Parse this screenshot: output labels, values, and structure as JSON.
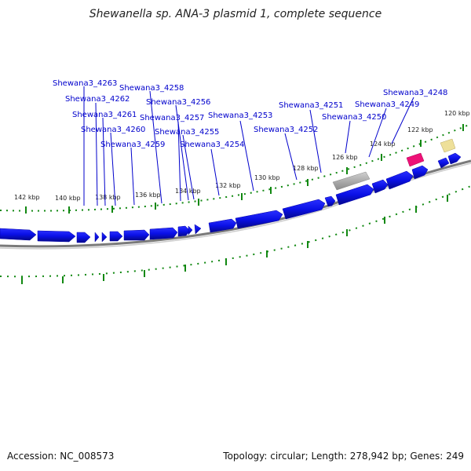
{
  "title": "Shewanella sp. ANA-3 plasmid 1, complete sequence",
  "footer": {
    "accession": "Accession: NC_008573",
    "summary": "Topology: circular; Length: 278,942 bp; Genes: 249"
  },
  "colors": {
    "gene": "#0a10e6",
    "gene_label": "#0000cc",
    "backbone": "#777777",
    "tick": "#118811",
    "grey_feature": "#aaaaaa",
    "pink_feature": "#ee1177",
    "yellow_feature": "#eee09a"
  },
  "ticks": [
    {
      "label": "142 kbp",
      "kbp": 142
    },
    {
      "label": "140 kbp",
      "kbp": 140
    },
    {
      "label": "138 kbp",
      "kbp": 138
    },
    {
      "label": "136 kbp",
      "kbp": 136
    },
    {
      "label": "134 kbp",
      "kbp": 134
    },
    {
      "label": "132 kbp",
      "kbp": 132
    },
    {
      "label": "130 kbp",
      "kbp": 130
    },
    {
      "label": "128 kbp",
      "kbp": 128
    },
    {
      "label": "126 kbp",
      "kbp": 126
    },
    {
      "label": "124 kbp",
      "kbp": 124
    },
    {
      "label": "122 kbp",
      "kbp": 122
    },
    {
      "label": "120 kbp",
      "kbp": 120
    }
  ],
  "genes": [
    {
      "label": "Shewana3_4263"
    },
    {
      "label": "Shewana3_4262"
    },
    {
      "label": "Shewana3_4261"
    },
    {
      "label": "Shewana3_4260"
    },
    {
      "label": "Shewana3_4259"
    },
    {
      "label": "Shewana3_4258"
    },
    {
      "label": "Shewana3_4257"
    },
    {
      "label": "Shewana3_4256"
    },
    {
      "label": "Shewana3_4255"
    },
    {
      "label": "Shewana3_4254"
    },
    {
      "label": "Shewana3_4253"
    },
    {
      "label": "Shewana3_4252"
    },
    {
      "label": "Shewana3_4251"
    },
    {
      "label": "Shewana3_4250"
    },
    {
      "label": "Shewana3_4249"
    },
    {
      "label": "Shewana3_4248"
    }
  ]
}
